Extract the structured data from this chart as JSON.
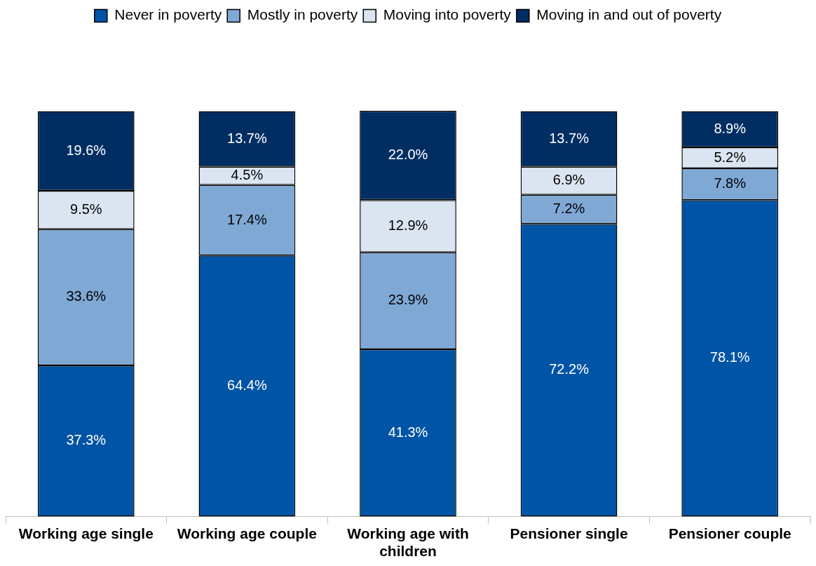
{
  "chart_data": {
    "type": "bar",
    "stacked": true,
    "legend": "top",
    "grid": false,
    "tick_labels": "x",
    "categories": [
      "Working age single",
      "Working age couple",
      "Working age with children",
      "Pensioner single",
      "Pensioner couple"
    ],
    "series": [
      {
        "name": "Never in poverty",
        "color": "#0054a6",
        "values": [
          37.3,
          64.4,
          41.3,
          72.2,
          78.1
        ],
        "value_labels": [
          "37.3%",
          "64.4%",
          "41.3%",
          "72.2%",
          "78.1%"
        ]
      },
      {
        "name": "Mostly in poverty",
        "color": "#7fa8d5",
        "values": [
          33.6,
          17.4,
          23.9,
          7.2,
          7.8
        ],
        "value_labels": [
          "33.6%",
          "17.4%",
          "23.9%",
          "7.2%",
          "7.8%"
        ]
      },
      {
        "name": "Moving into poverty",
        "color": "#dbe5f1",
        "values": [
          9.5,
          4.5,
          12.9,
          6.9,
          5.2
        ],
        "value_labels": [
          "9.5%",
          "4.5%",
          "12.9%",
          "6.9%",
          "5.2%"
        ]
      },
      {
        "name": "Moving in and out of poverty",
        "color": "#002e63",
        "values": [
          19.6,
          13.7,
          22.0,
          13.7,
          8.9
        ],
        "value_labels": [
          "19.6%",
          "13.7%",
          "22.0%",
          "13.7%",
          "8.9%"
        ]
      }
    ]
  }
}
